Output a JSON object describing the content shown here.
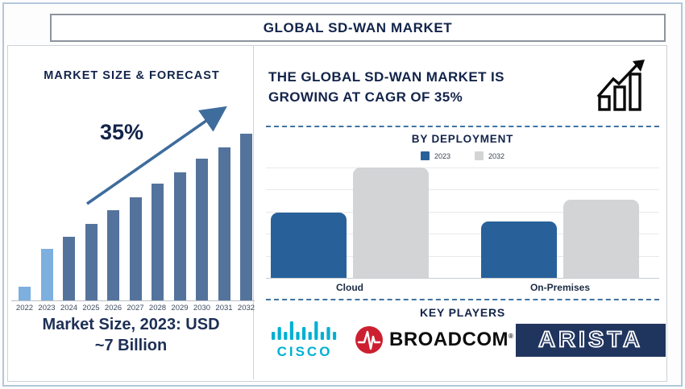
{
  "title": "GLOBAL SD-WAN MARKET",
  "colors": {
    "navy_text": "#13244a",
    "frame_border": "#b3c7d9",
    "bar_light_blue": "#7dafdf",
    "bar_slate_blue": "#54739c",
    "arrow_blue": "#3e6c9d",
    "deployment_blue": "#28619a",
    "deployment_gray": "#d3d4d6",
    "dashed_line": "#4073a3",
    "cisco_cyan": "#00b0d2",
    "broadcom_red": "#cc2030",
    "arista_navy": "#20355e"
  },
  "left_panel": {
    "heading": "MARKET SIZE & FORECAST",
    "growth_label": "35%",
    "caption_line1": "Market Size, 2023: USD",
    "caption_line2": "~7 Billion"
  },
  "right_panel": {
    "headline_line1": "THE GLOBAL SD-WAN MARKET IS",
    "headline_line2": "GROWING AT CAGR OF 35%",
    "by_deployment_heading": "BY DEPLOYMENT",
    "key_players_heading": "KEY PLAYERS",
    "key_players": [
      {
        "name": "cisco",
        "label": "CISCO"
      },
      {
        "name": "broadcom",
        "label": "BROADCOM",
        "mark": "®"
      },
      {
        "name": "arista",
        "label": "ARISTA"
      }
    ]
  },
  "chart_data": [
    {
      "type": "bar",
      "title": "MARKET SIZE & FORECAST",
      "categories": [
        "2022",
        "2023",
        "2024",
        "2025",
        "2026",
        "2027",
        "2028",
        "2029",
        "2030",
        "2031",
        "2032"
      ],
      "values": [
        8,
        31,
        38,
        46,
        54,
        62,
        70,
        77,
        85,
        92,
        100
      ],
      "value_unit": "relative bar height, % of 2032 bar (stylized chart, no value axis shown)",
      "highlight_categories": [
        "2022",
        "2023"
      ],
      "annotation": "35%",
      "note": "Market Size, 2023: USD ~7 Billion",
      "xlabel": "",
      "ylabel": "",
      "grid": false,
      "legend": false
    },
    {
      "type": "bar",
      "title": "BY DEPLOYMENT",
      "categories": [
        "Cloud",
        "On-Premises"
      ],
      "series": [
        {
          "name": "2023",
          "values": [
            59,
            51
          ]
        },
        {
          "name": "2032",
          "values": [
            100,
            71
          ]
        }
      ],
      "value_unit": "relative bar height, % of tallest bar (no value axis shown)",
      "grid": true,
      "legend_position": "top"
    }
  ]
}
